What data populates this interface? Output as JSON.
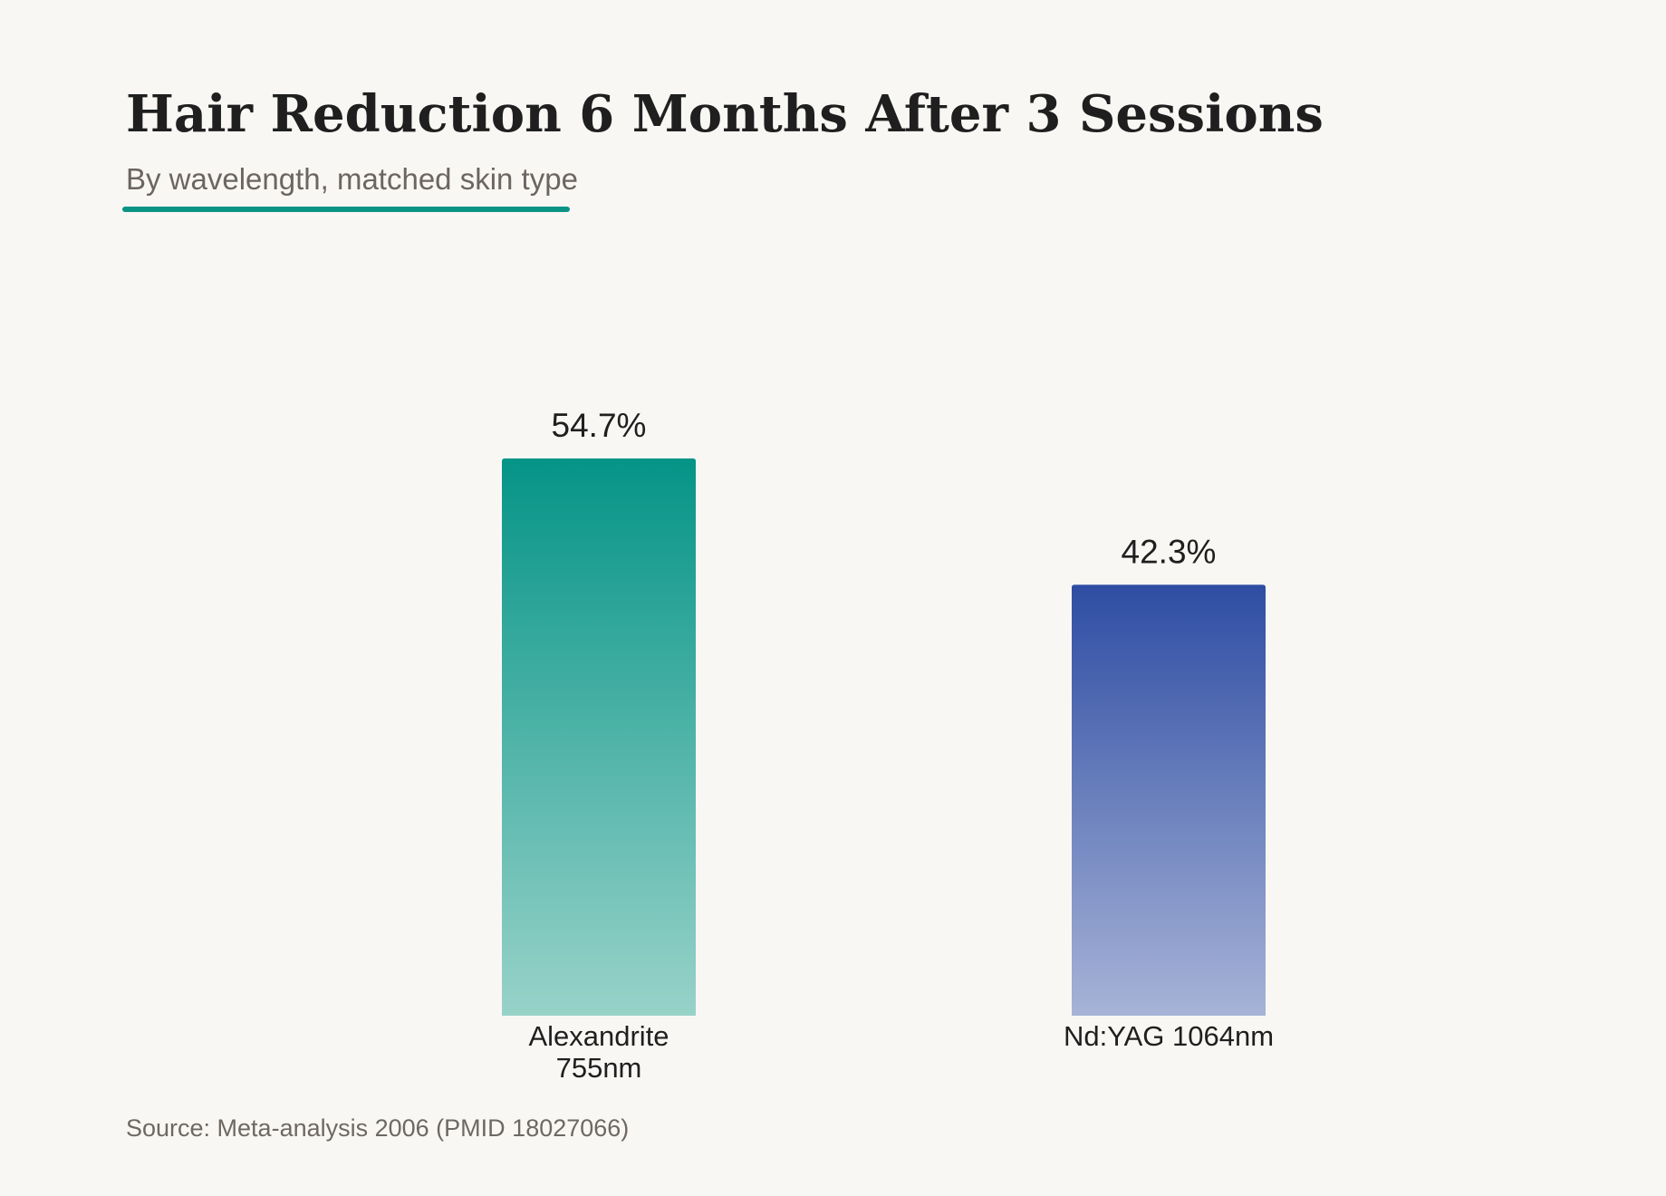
{
  "header": {
    "title": "Hair Reduction 6 Months After 3 Sessions",
    "subtitle": "By wavelength, matched skin type"
  },
  "footer": {
    "source": "Source: Meta-analysis 2006 (PMID 18027066)"
  },
  "colors": {
    "accent": "#0a9486",
    "text": "#1f1f1f",
    "muted": "#6c6560",
    "background": "#f9f7f4"
  },
  "chart_data": {
    "type": "bar",
    "title": "Hair Reduction 6 Months After 3 Sessions",
    "subtitle": "By wavelength, matched skin type",
    "xlabel": "",
    "ylabel": "",
    "categories": [
      [
        "Alexandrite",
        "755nm"
      ],
      [
        "Nd:YAG 1064nm"
      ]
    ],
    "values": [
      54.7,
      42.3
    ],
    "value_labels": [
      "54.7%",
      "42.3%"
    ],
    "unit": "%",
    "ylim": [
      0,
      54.7
    ],
    "grid": false,
    "legend": "none",
    "bar_colors": [
      {
        "top": "#059487",
        "bottom": "#98d2c9"
      },
      {
        "top": "#2e4da3",
        "bottom": "#a7b3d7"
      }
    ]
  }
}
